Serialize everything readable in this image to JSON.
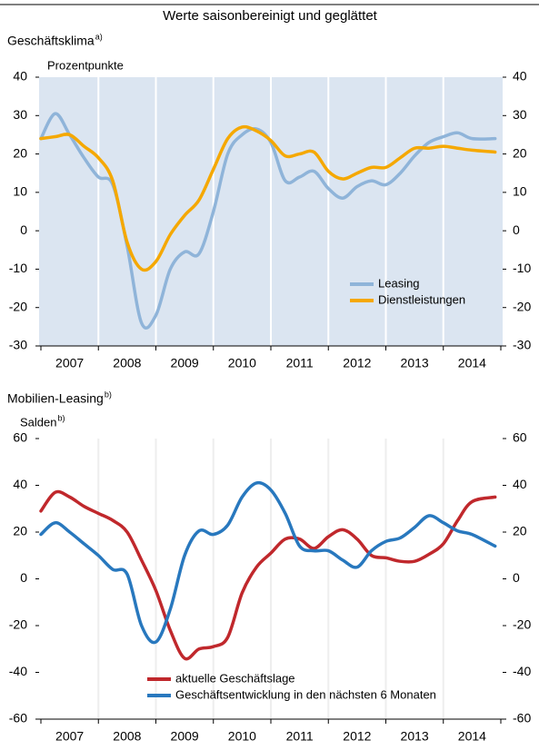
{
  "header": {
    "title": "Werte saisonbereinigt und geglättet"
  },
  "chart_data": [
    {
      "type": "line",
      "title": "Geschäftsklima",
      "title_note": "a)",
      "y_label": "Prozentpunkte",
      "plot_background": "#dbe5f1",
      "legend": "lower right",
      "x": [
        2007.0,
        2007.25,
        2007.5,
        2007.75,
        2008.0,
        2008.25,
        2008.5,
        2008.75,
        2009.0,
        2009.25,
        2009.5,
        2009.75,
        2010.0,
        2010.25,
        2010.5,
        2010.75,
        2011.0,
        2011.25,
        2011.5,
        2011.75,
        2012.0,
        2012.25,
        2012.5,
        2012.75,
        2013.0,
        2013.25,
        2013.5,
        2013.75,
        2014.0,
        2014.25,
        2014.5,
        2014.9
      ],
      "series": [
        {
          "name": "Leasing",
          "color": "#8fb4d9",
          "values": [
            24,
            30.5,
            25,
            19,
            14,
            12,
            -4,
            -24,
            -22,
            -10,
            -5.5,
            -6,
            5,
            20,
            25,
            26.5,
            23,
            13,
            14,
            15.5,
            11,
            8.5,
            11.5,
            13,
            12,
            15,
            19.5,
            23,
            24.5,
            25.5,
            24,
            24
          ]
        },
        {
          "name": "Dienstleistungen",
          "color": "#f5a800",
          "values": [
            24,
            24.5,
            25,
            22,
            19,
            13,
            -3,
            -10,
            -8,
            -1,
            4,
            8,
            16,
            24,
            27,
            26,
            23.5,
            19.5,
            20,
            20.5,
            15.5,
            13.5,
            15,
            16.5,
            16.5,
            19,
            21.5,
            21.5,
            22,
            21.5,
            21,
            20.5
          ]
        }
      ],
      "xlim": [
        2007,
        2015
      ],
      "xticks": [
        {
          "value": 2007.5,
          "label": "2007"
        },
        {
          "value": 2008.5,
          "label": "2008"
        },
        {
          "value": 2009.5,
          "label": "2009"
        },
        {
          "value": 2010.5,
          "label": "2010"
        },
        {
          "value": 2011.5,
          "label": "2011"
        },
        {
          "value": 2012.5,
          "label": "2012"
        },
        {
          "value": 2013.5,
          "label": "2013"
        },
        {
          "value": 2014.5,
          "label": "2014"
        }
      ],
      "ylim": [
        -30,
        40
      ],
      "yticks": [
        -30,
        -20,
        -10,
        0,
        10,
        20,
        30,
        40
      ]
    },
    {
      "type": "line",
      "title": "Mobilien-Leasing",
      "title_note": "b)",
      "y_label": "Salden",
      "plot_background": "#ffffff",
      "legend": "lower left",
      "x": [
        2007.0,
        2007.25,
        2007.5,
        2007.75,
        2008.0,
        2008.25,
        2008.5,
        2008.75,
        2009.0,
        2009.25,
        2009.5,
        2009.75,
        2010.0,
        2010.25,
        2010.5,
        2010.75,
        2011.0,
        2011.25,
        2011.5,
        2011.75,
        2012.0,
        2012.25,
        2012.5,
        2012.75,
        2013.0,
        2013.25,
        2013.5,
        2013.75,
        2014.0,
        2014.25,
        2014.5,
        2014.9
      ],
      "series": [
        {
          "name": "aktuelle Geschäftslage",
          "color": "#c0282c",
          "values": [
            29,
            37,
            35,
            31,
            28,
            25,
            20,
            8,
            -5,
            -22,
            -34,
            -30,
            -29,
            -25,
            -6,
            5,
            11,
            17,
            17,
            13,
            18,
            21,
            17,
            10,
            9,
            7.5,
            7.5,
            10.5,
            15,
            25,
            33,
            35
          ]
        },
        {
          "name": "Geschäftsentwicklung in den nächsten 6 Monaten",
          "color": "#2878be",
          "values": [
            19,
            24,
            20,
            15,
            10,
            4,
            2,
            -20,
            -27,
            -13,
            10,
            20.5,
            19,
            23,
            35,
            41,
            38,
            28,
            14,
            12,
            12,
            8,
            5,
            12,
            16,
            17.5,
            22,
            27,
            24,
            20.5,
            19,
            14
          ]
        }
      ],
      "xlim": [
        2007,
        2015
      ],
      "xticks": [
        {
          "value": 2007.5,
          "label": "2007"
        },
        {
          "value": 2008.5,
          "label": "2008"
        },
        {
          "value": 2009.5,
          "label": "2009"
        },
        {
          "value": 2010.5,
          "label": "2010"
        },
        {
          "value": 2011.5,
          "label": "2011"
        },
        {
          "value": 2012.5,
          "label": "2012"
        },
        {
          "value": 2013.5,
          "label": "2013"
        },
        {
          "value": 2014.5,
          "label": "2014"
        }
      ],
      "ylim": [
        -60,
        60
      ],
      "yticks": [
        -60,
        -40,
        -20,
        0,
        20,
        40,
        60
      ]
    }
  ]
}
